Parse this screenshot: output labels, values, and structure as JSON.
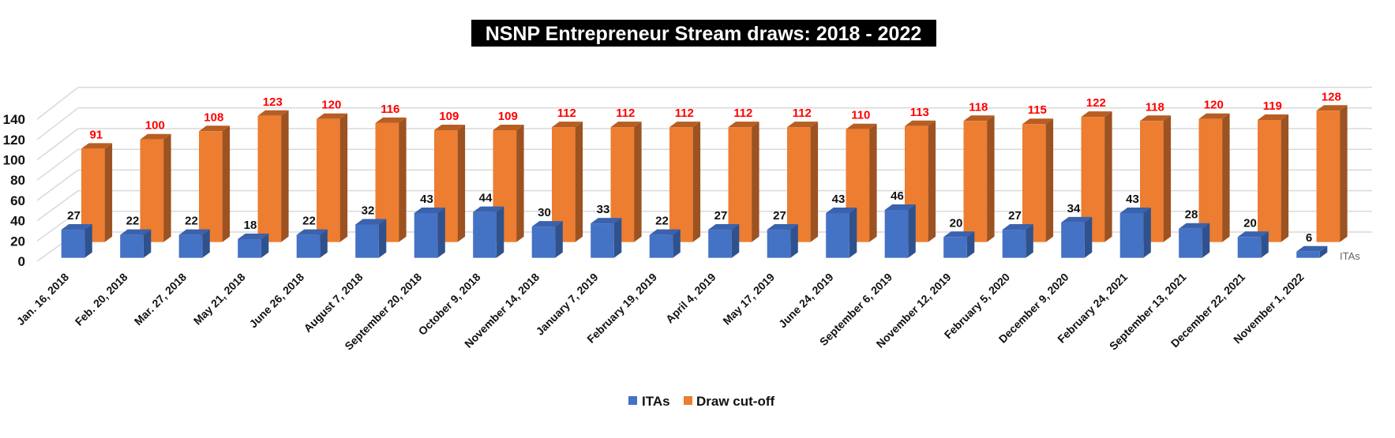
{
  "chart_data": {
    "type": "bar",
    "style": "3d-clustered-column",
    "title": "NSNP Entrepreneur Stream draws: 2018 - 2022",
    "categories": [
      "Jan. 16, 2018",
      "Feb. 20, 2018",
      "Mar. 27, 2018",
      "May 21, 2018",
      "June 26, 2018",
      "August 7, 2018",
      "September 20, 2018",
      "October 9, 2018",
      "November 14, 2018",
      "January 7, 2019",
      "February 19, 2019",
      "April 4, 2019",
      "May 17, 2019",
      "June 24, 2019",
      "September 6, 2019",
      "November 12, 2019",
      "February 5, 2020",
      "December 9, 2020",
      "February 24, 2021",
      "September 13, 2021",
      "December 22, 2021",
      "November 1, 2022"
    ],
    "series": [
      {
        "name": "ITAs",
        "color": "#4472C4",
        "label_color": "#111111",
        "values": [
          27,
          22,
          22,
          18,
          22,
          32,
          43,
          44,
          30,
          33,
          22,
          27,
          27,
          43,
          46,
          20,
          27,
          34,
          43,
          28,
          20,
          6
        ]
      },
      {
        "name": "Draw cut-off",
        "color": "#ED7D31",
        "label_color": "#FF0000",
        "values": [
          91,
          100,
          108,
          123,
          120,
          116,
          109,
          109,
          112,
          112,
          112,
          112,
          112,
          110,
          113,
          118,
          115,
          122,
          118,
          120,
          119,
          128
        ]
      }
    ],
    "yticks": [
      "0",
      "20",
      "40",
      "60",
      "80",
      "100",
      "120",
      "140"
    ],
    "ylim": [
      0,
      140
    ],
    "depth_axis_label": "ITAs",
    "grid": true,
    "legend": "bottom"
  }
}
